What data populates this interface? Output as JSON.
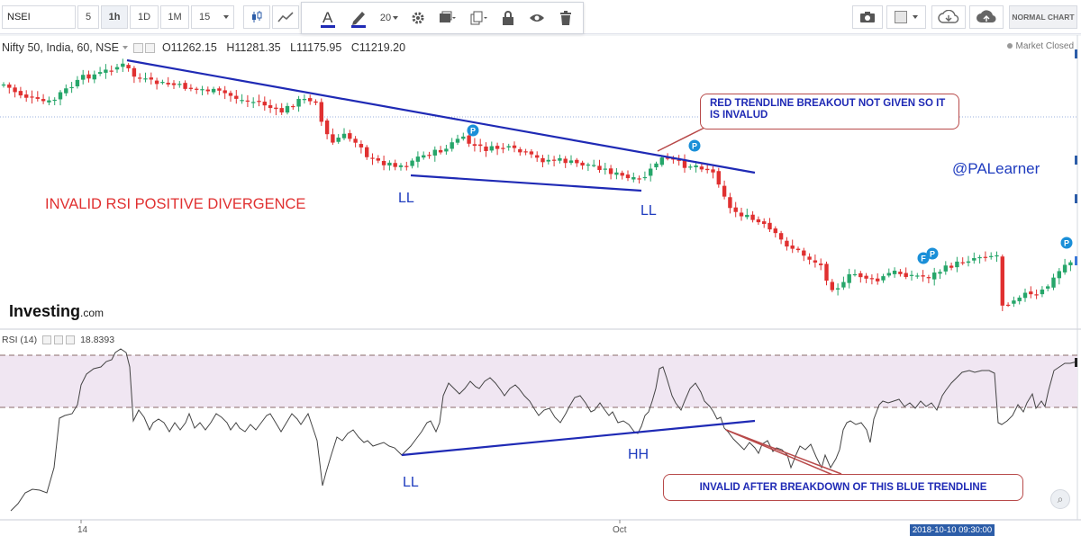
{
  "toolbar": {
    "symbol": "NSEI",
    "intervals": [
      "5",
      "1h",
      "1D",
      "1M"
    ],
    "active_interval": "1h",
    "custom_interval": "15",
    "font_size": "20",
    "normal_chart_label": "NORMAL CHART",
    "icons": [
      "candlestick-icon",
      "line-chart-icon",
      "text-icon",
      "pencil-icon",
      "gear-icon",
      "shape-icon",
      "copy-icon",
      "lock-icon",
      "eye-icon",
      "trash-icon",
      "camera-icon",
      "color-box-icon",
      "cloud-download-icon",
      "cloud-upload-icon"
    ]
  },
  "legend": {
    "instrument": "Nifty 50, India, 60, NSE",
    "open": "O11262.15",
    "high": "H11281.35",
    "low": "L11175.95",
    "close": "C11219.20",
    "market_status": "Market Closed"
  },
  "rsi": {
    "label": "RSI (14)",
    "value": "18.8393"
  },
  "logo": {
    "main": "Investing",
    "suffix": ".com"
  },
  "annotations": {
    "invalid_divergence": "INVALID RSI POSITIVE DIVERGENCE",
    "ll_price_1": "LL",
    "ll_price_2": "LL",
    "handle": "@PALearner",
    "ll_rsi": "LL",
    "hh_rsi": "HH",
    "callout_red": "RED TRENDLINE BREAKOUT NOT GIVEN SO IT IS  INVALUD",
    "callout_blue": "INVALID AFTER BREAKDOWN OF THIS BLUE TRENDLINE",
    "pivot_marker": "P",
    "f_marker": "F"
  },
  "xaxis": {
    "ticks": [
      "14",
      "Oct"
    ],
    "crosshair_date": "2018-10-10 09:30:00"
  },
  "colors": {
    "up": "#26a66a",
    "down": "#e03030",
    "trendline": "#1f2ab5",
    "rsi_band": "#f0e6f2",
    "date_label": "#2c5da8"
  },
  "chart_data": [
    {
      "type": "candlestick",
      "title": "Nifty 50, India, 60, NSE",
      "last_candle": {
        "open": 11262.15,
        "high": 11281.35,
        "low": 11175.95,
        "close": 11219.2
      }
    },
    {
      "type": "line",
      "title": "RSI (14)",
      "last_value": 18.8393,
      "ylim": [
        0,
        100
      ],
      "bands": [
        30,
        70
      ]
    }
  ]
}
